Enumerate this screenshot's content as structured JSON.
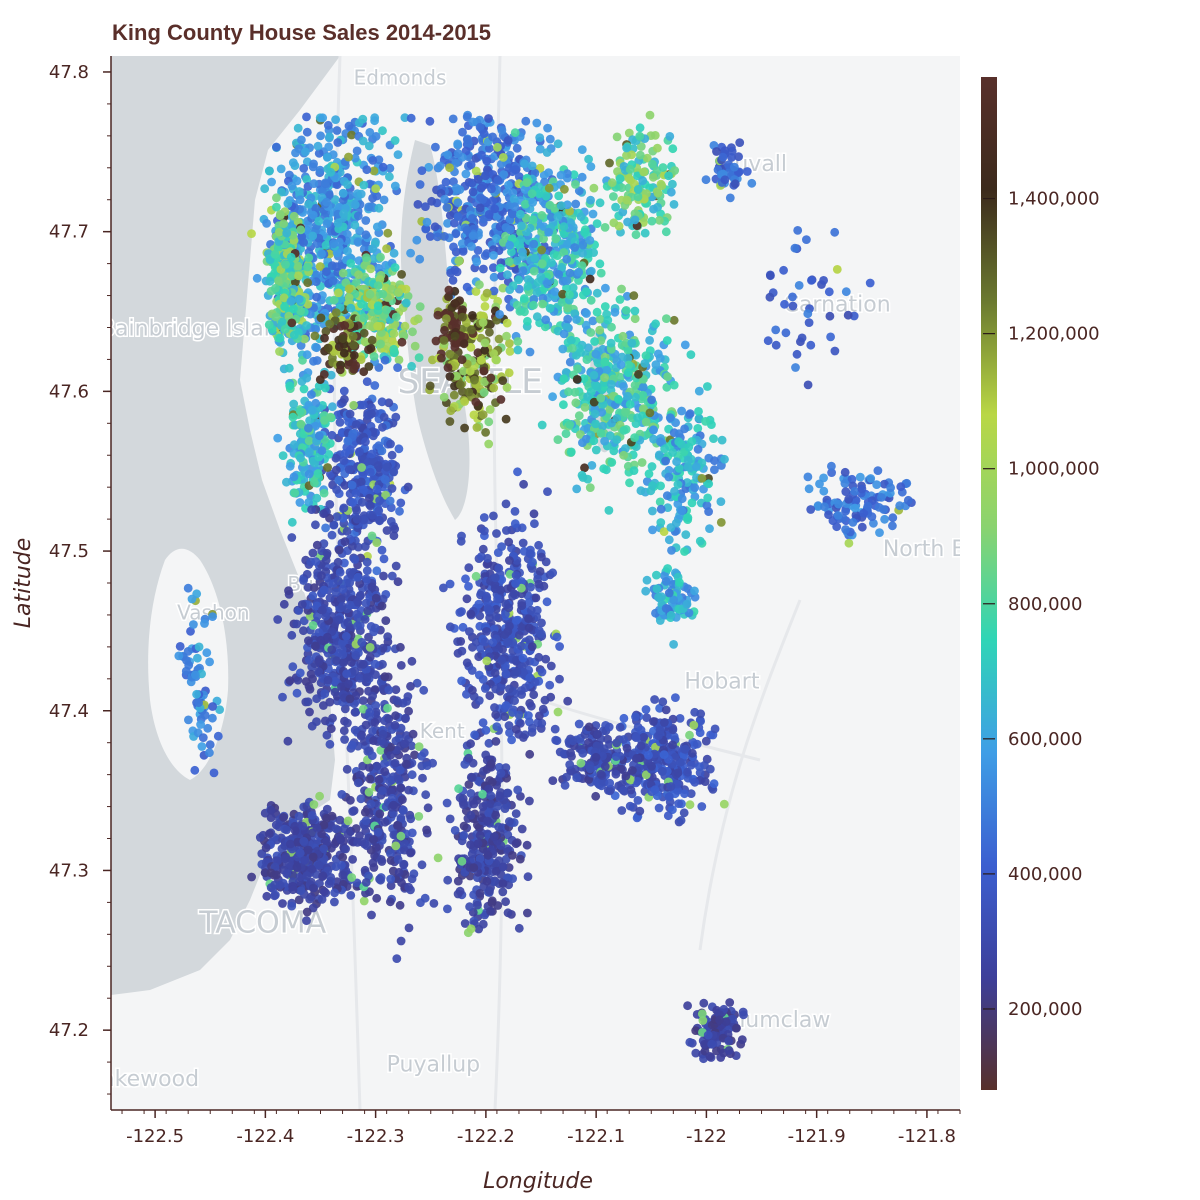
{
  "chart_data": {
    "type": "scatter",
    "title": "King County House Sales 2014-2015",
    "xlabel": "Longitude",
    "ylabel": "Latitude",
    "xlim": [
      -122.54,
      -121.77
    ],
    "ylim": [
      47.15,
      47.81
    ],
    "xticks": [
      -122.5,
      -122.4,
      -122.3,
      -122.2,
      -122.1,
      -122,
      -121.9,
      -121.8
    ],
    "xtick_labels": [
      "-122.5",
      "-122.4",
      "-122.3",
      "-122.2",
      "-122.1",
      "-122",
      "-121.9",
      "-121.8"
    ],
    "yticks": [
      47.2,
      47.3,
      47.4,
      47.5,
      47.6,
      47.7,
      47.8
    ],
    "ytick_labels": [
      "47.2",
      "47.3",
      "47.4",
      "47.5",
      "47.6",
      "47.7",
      "47.8"
    ],
    "colorbar": {
      "label": "",
      "range": [
        80000,
        1580000
      ],
      "ticks": [
        200000,
        400000,
        600000,
        800000,
        1000000,
        1200000,
        1400000
      ],
      "tick_labels": [
        "200,000",
        "400,000",
        "600,000",
        "800,000",
        "1,000,000",
        "1,200,000",
        "1,400,000"
      ],
      "colors": [
        "#58302b",
        "#3d3f9a",
        "#3b5fd0",
        "#3f9ee6",
        "#2fd5b6",
        "#8ad36f",
        "#b9d745",
        "#6b7a2f",
        "#3c2a1c",
        "#58302b"
      ]
    },
    "basemap_labels": [
      "Edmonds",
      "Bainbridge Island",
      "SEATTLE",
      "Duvall",
      "Carnation",
      "North Bend",
      "Vashon",
      "Burien",
      "Kent",
      "Hobart",
      "TACOMA",
      "Puyallup",
      "Enumclaw",
      "Lakewood"
    ],
    "clusters": [
      {
        "lon": -122.34,
        "lat": 47.7,
        "rx": 0.05,
        "ry": 0.07,
        "n": 600,
        "price": 560000
      },
      {
        "lon": -122.38,
        "lat": 47.67,
        "rx": 0.015,
        "ry": 0.04,
        "n": 260,
        "price": 820000
      },
      {
        "lon": -122.3,
        "lat": 47.65,
        "rx": 0.03,
        "ry": 0.03,
        "n": 220,
        "price": 900000
      },
      {
        "lon": -122.31,
        "lat": 47.55,
        "rx": 0.03,
        "ry": 0.05,
        "n": 320,
        "price": 380000
      },
      {
        "lon": -122.2,
        "lat": 47.72,
        "rx": 0.05,
        "ry": 0.05,
        "n": 420,
        "price": 470000
      },
      {
        "lon": -122.21,
        "lat": 47.62,
        "rx": 0.03,
        "ry": 0.04,
        "n": 200,
        "price": 1150000
      },
      {
        "lon": -122.14,
        "lat": 47.69,
        "rx": 0.04,
        "ry": 0.05,
        "n": 360,
        "price": 680000
      },
      {
        "lon": -122.08,
        "lat": 47.6,
        "rx": 0.05,
        "ry": 0.05,
        "n": 400,
        "price": 720000
      },
      {
        "lon": -122.06,
        "lat": 47.73,
        "rx": 0.03,
        "ry": 0.03,
        "n": 140,
        "price": 820000
      },
      {
        "lon": -122.02,
        "lat": 47.55,
        "rx": 0.03,
        "ry": 0.04,
        "n": 160,
        "price": 620000
      },
      {
        "lon": -122.36,
        "lat": 47.57,
        "rx": 0.02,
        "ry": 0.04,
        "n": 180,
        "price": 680000
      },
      {
        "lon": -122.33,
        "lat": 47.45,
        "rx": 0.04,
        "ry": 0.06,
        "n": 480,
        "price": 300000
      },
      {
        "lon": -122.36,
        "lat": 47.31,
        "rx": 0.04,
        "ry": 0.03,
        "n": 360,
        "price": 280000
      },
      {
        "lon": -122.29,
        "lat": 47.35,
        "rx": 0.03,
        "ry": 0.07,
        "n": 330,
        "price": 290000
      },
      {
        "lon": -122.18,
        "lat": 47.45,
        "rx": 0.04,
        "ry": 0.07,
        "n": 460,
        "price": 330000
      },
      {
        "lon": -122.2,
        "lat": 47.32,
        "rx": 0.03,
        "ry": 0.05,
        "n": 280,
        "price": 280000
      },
      {
        "lon": -122.04,
        "lat": 47.37,
        "rx": 0.04,
        "ry": 0.03,
        "n": 300,
        "price": 350000
      },
      {
        "lon": -122.1,
        "lat": 47.37,
        "rx": 0.03,
        "ry": 0.02,
        "n": 160,
        "price": 300000
      },
      {
        "lon": -121.99,
        "lat": 47.2,
        "rx": 0.02,
        "ry": 0.015,
        "n": 110,
        "price": 270000
      },
      {
        "lon": -121.98,
        "lat": 47.74,
        "rx": 0.015,
        "ry": 0.015,
        "n": 50,
        "price": 430000
      },
      {
        "lon": -121.86,
        "lat": 47.53,
        "rx": 0.04,
        "ry": 0.02,
        "n": 110,
        "price": 460000
      },
      {
        "lon": -122.03,
        "lat": 47.47,
        "rx": 0.02,
        "ry": 0.02,
        "n": 80,
        "price": 620000
      },
      {
        "lon": -122.46,
        "lat": 47.42,
        "rx": 0.015,
        "ry": 0.05,
        "n": 70,
        "price": 520000
      },
      {
        "lon": -121.9,
        "lat": 47.66,
        "rx": 0.04,
        "ry": 0.04,
        "n": 40,
        "price": 420000
      },
      {
        "lon": -122.33,
        "lat": 47.63,
        "rx": 0.02,
        "ry": 0.02,
        "n": 70,
        "price": 1350000
      },
      {
        "lon": -122.23,
        "lat": 47.64,
        "rx": 0.012,
        "ry": 0.02,
        "n": 60,
        "price": 1500000
      }
    ]
  }
}
